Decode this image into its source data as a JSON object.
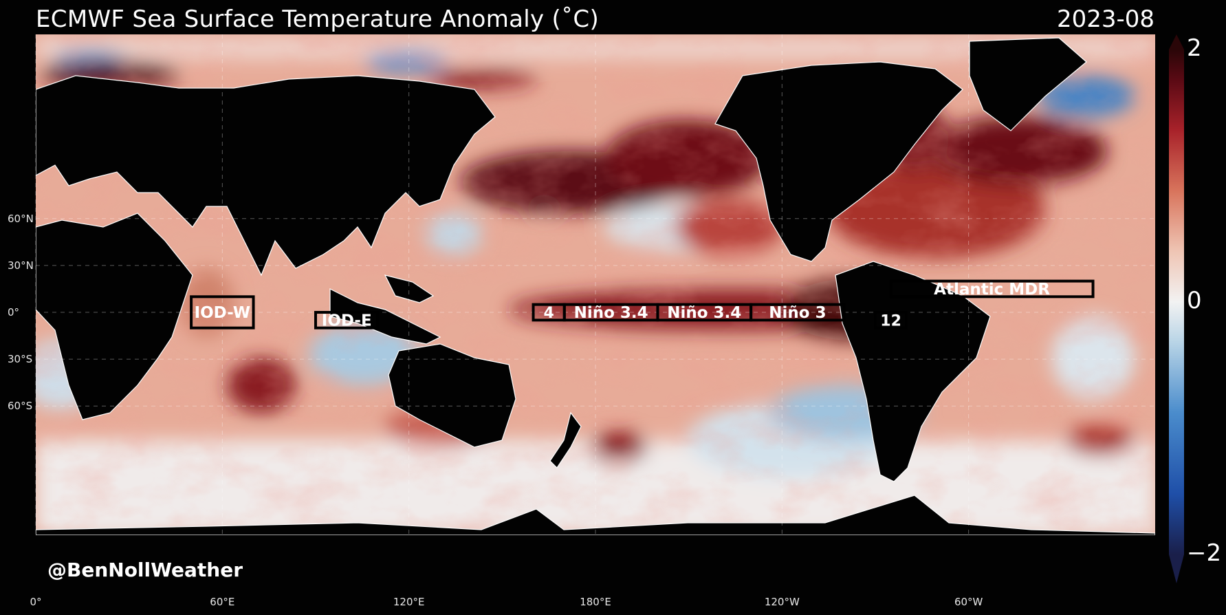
{
  "header": {
    "title": "ECMWF Sea Surface Temperature Anomaly (˚C)",
    "date": "2023-08"
  },
  "credit": "@BenNollWeather",
  "axes": {
    "latitude_labels": [
      {
        "label": "60°N",
        "lat": 60
      },
      {
        "label": "30°N",
        "lat": 30
      },
      {
        "label": "0°",
        "lat": 0
      },
      {
        "label": "30°S",
        "lat": -30
      },
      {
        "label": "60°S",
        "lat": -60
      }
    ],
    "longitude_labels": [
      {
        "label": "0°",
        "lon": 0
      },
      {
        "label": "60°E",
        "lon": 60
      },
      {
        "label": "120°E",
        "lon": 120
      },
      {
        "label": "180°E",
        "lon": 180
      },
      {
        "label": "120°W",
        "lon": 240
      },
      {
        "label": "60°W",
        "lon": 300
      }
    ]
  },
  "colorbar": {
    "min": -2,
    "max": 2,
    "tick_labels": [
      {
        "label": "2",
        "value": 2
      },
      {
        "label": "0",
        "value": 0
      },
      {
        "label": "−2",
        "value": -2
      }
    ],
    "colors": [
      "#1a1f4a",
      "#1f4fa8",
      "#4a8ccc",
      "#b8d4e6",
      "#f2f2f2",
      "#efc5b4",
      "#d8745c",
      "#a8222a",
      "#5a0a14",
      "#2a0608"
    ]
  },
  "regions": [
    {
      "label": "IOD-W",
      "lon1": 50,
      "lon2": 70,
      "lat1": 10,
      "lat2": -10
    },
    {
      "label": "IOD-E",
      "lon1": 90,
      "lon2": 110,
      "lat1": 0,
      "lat2": -10
    },
    {
      "label": "4",
      "lon1": 160,
      "lon2": 170,
      "lat1": 5,
      "lat2": -5
    },
    {
      "label": "Niño 3.4",
      "lon1": 170,
      "lon2": 200,
      "lat1": 5,
      "lat2": -5
    },
    {
      "label": "Niño 3.4",
      "lon1": 200,
      "lon2": 230,
      "lat1": 5,
      "lat2": -5
    },
    {
      "label": "Niño 3",
      "lon1": 230,
      "lon2": 260,
      "lat1": 5,
      "lat2": -5
    },
    {
      "label": "12",
      "lon1": 270,
      "lon2": 280,
      "lat1": 0,
      "lat2": -10
    },
    {
      "label": "Atlantic MDR",
      "lon1": 275,
      "lon2": 340,
      "lat1": 20,
      "lat2": 10
    }
  ]
}
